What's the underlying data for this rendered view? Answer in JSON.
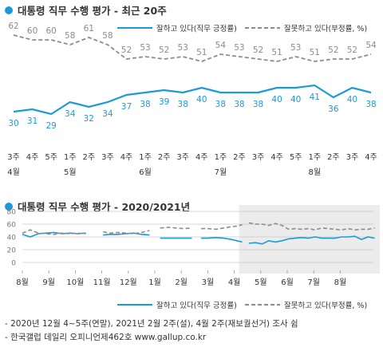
{
  "colors": {
    "approve": "#1a9bd7",
    "disapprove": "#8c8c8c",
    "recent_band": "#ececec",
    "grid": "#bfbfbf",
    "text": "#333333"
  },
  "notes": [
    "- 2020년 12월 4~5주(연말), 2021년 2월 2주(설), 4월 2주(재보궐선거) 조사 쉼",
    "- 한국갤럽 데일리 오피니언제462호 www.gallup.co.kr"
  ],
  "chart_data": [
    {
      "type": "line",
      "title": "대통령 직무 수행 평가 - 최근 20주",
      "categories": [
        "3주",
        "4주",
        "5주",
        "1주",
        "2주",
        "3주",
        "4주",
        "1주",
        "2주",
        "3주",
        "4주",
        "1주",
        "2주",
        "3주",
        "4주",
        "5주",
        "1주",
        "2주",
        "3주",
        "4주"
      ],
      "month_labels": [
        {
          "at": 0,
          "label": "4월"
        },
        {
          "at": 3,
          "label": "5월"
        },
        {
          "at": 7,
          "label": "6월"
        },
        {
          "at": 11,
          "label": "7월"
        },
        {
          "at": 16,
          "label": "8월"
        }
      ],
      "series": [
        {
          "name": "잘하고 있다(직무 긍정률)",
          "style": "solid",
          "color": "#1a9bd7",
          "values": [
            30,
            31,
            29,
            34,
            32,
            34,
            37,
            38,
            39,
            38,
            40,
            38,
            38,
            38,
            40,
            40,
            41,
            36,
            40,
            38
          ]
        },
        {
          "name": "잘못하고 있다(부정률, %)",
          "style": "dashed",
          "color": "#8c8c8c",
          "values": [
            62,
            60,
            60,
            58,
            61,
            58,
            52,
            53,
            52,
            53,
            51,
            54,
            53,
            52,
            51,
            53,
            51,
            52,
            52,
            54
          ]
        }
      ],
      "ylim": [
        20,
        70
      ],
      "grid": false,
      "legend_position": "top-right"
    },
    {
      "type": "line",
      "title": "대통령 직무 수행 평가 - 2020/2021년",
      "x_labels": [
        "8월",
        "9월",
        "10월",
        "11월",
        "12월",
        "1월",
        "2월",
        "3월",
        "4월",
        "5월",
        "6월",
        "7월",
        "8월"
      ],
      "y_ticks": [
        0,
        20,
        40,
        60,
        80
      ],
      "ylim": [
        0,
        80
      ],
      "grid": true,
      "highlight_region": {
        "from_label": "4월",
        "to": "end"
      },
      "series": [
        {
          "name": "잘하고 있다(직무 긍정률)",
          "style": "solid",
          "color": "#1a9bd7",
          "segments": [
            [
              [
                0,
                44
              ],
              [
                0.3,
                40
              ],
              [
                0.6,
                45
              ],
              [
                0.9,
                46
              ],
              [
                1.2,
                47
              ],
              [
                1.5,
                45
              ],
              [
                1.8,
                46
              ],
              [
                2.1,
                45
              ],
              [
                2.4,
                46
              ]
            ],
            [
              [
                3.05,
                43
              ],
              [
                3.3,
                44
              ],
              [
                3.6,
                44
              ],
              [
                3.9,
                45
              ],
              [
                4.2,
                46
              ],
              [
                4.5,
                44
              ],
              [
                4.8,
                43
              ]
            ],
            [
              [
                5.2,
                38
              ],
              [
                5.5,
                38
              ],
              [
                5.8,
                38
              ],
              [
                6.1,
                38
              ],
              [
                6.4,
                38
              ]
            ],
            [
              [
                6.75,
                38
              ],
              [
                7.0,
                38
              ],
              [
                7.3,
                39
              ],
              [
                7.6,
                38
              ],
              [
                7.9,
                36
              ],
              [
                8.1,
                34
              ],
              [
                8.3,
                32
              ]
            ],
            [
              [
                8.55,
                30
              ],
              [
                8.8,
                31
              ],
              [
                9.05,
                29
              ],
              [
                9.3,
                34
              ],
              [
                9.55,
                32
              ],
              [
                9.8,
                34
              ],
              [
                10.05,
                37
              ],
              [
                10.3,
                38
              ],
              [
                10.55,
                39
              ],
              [
                10.8,
                38
              ],
              [
                11.05,
                40
              ],
              [
                11.3,
                38
              ],
              [
                11.55,
                38
              ],
              [
                11.8,
                38
              ],
              [
                12.05,
                40
              ],
              [
                12.3,
                40
              ],
              [
                12.55,
                41
              ],
              [
                12.8,
                36
              ],
              [
                13.05,
                40
              ],
              [
                13.3,
                38
              ]
            ]
          ]
        },
        {
          "name": "잘못하고 있다(부정률, %)",
          "style": "dashed",
          "color": "#8c8c8c",
          "segments": [
            [
              [
                0,
                46
              ],
              [
                0.3,
                51
              ],
              [
                0.6,
                46
              ],
              [
                0.9,
                45
              ],
              [
                1.2,
                44
              ],
              [
                1.5,
                46
              ],
              [
                1.8,
                45
              ],
              [
                2.1,
                46
              ],
              [
                2.4,
                45
              ]
            ],
            [
              [
                3.05,
                48
              ],
              [
                3.3,
                46
              ],
              [
                3.6,
                47
              ],
              [
                3.9,
                46
              ],
              [
                4.2,
                45
              ],
              [
                4.5,
                47
              ],
              [
                4.8,
                50
              ]
            ],
            [
              [
                5.2,
                54
              ],
              [
                5.5,
                55
              ],
              [
                5.8,
                54
              ],
              [
                6.1,
                53
              ],
              [
                6.4,
                54
              ]
            ],
            [
              [
                6.75,
                53
              ],
              [
                7.0,
                53
              ],
              [
                7.3,
                52
              ],
              [
                7.6,
                54
              ],
              [
                7.9,
                56
              ],
              [
                8.1,
                57
              ],
              [
                8.3,
                59
              ]
            ],
            [
              [
                8.55,
                62
              ],
              [
                8.8,
                60
              ],
              [
                9.05,
                60
              ],
              [
                9.3,
                58
              ],
              [
                9.55,
                61
              ],
              [
                9.8,
                58
              ],
              [
                10.05,
                52
              ],
              [
                10.3,
                53
              ],
              [
                10.55,
                52
              ],
              [
                10.8,
                53
              ],
              [
                11.05,
                51
              ],
              [
                11.3,
                54
              ],
              [
                11.55,
                53
              ],
              [
                11.8,
                52
              ],
              [
                12.05,
                51
              ],
              [
                12.3,
                53
              ],
              [
                12.55,
                51
              ],
              [
                12.8,
                52
              ],
              [
                13.05,
                52
              ],
              [
                13.3,
                54
              ]
            ]
          ]
        }
      ],
      "legend_position": "bottom"
    }
  ]
}
